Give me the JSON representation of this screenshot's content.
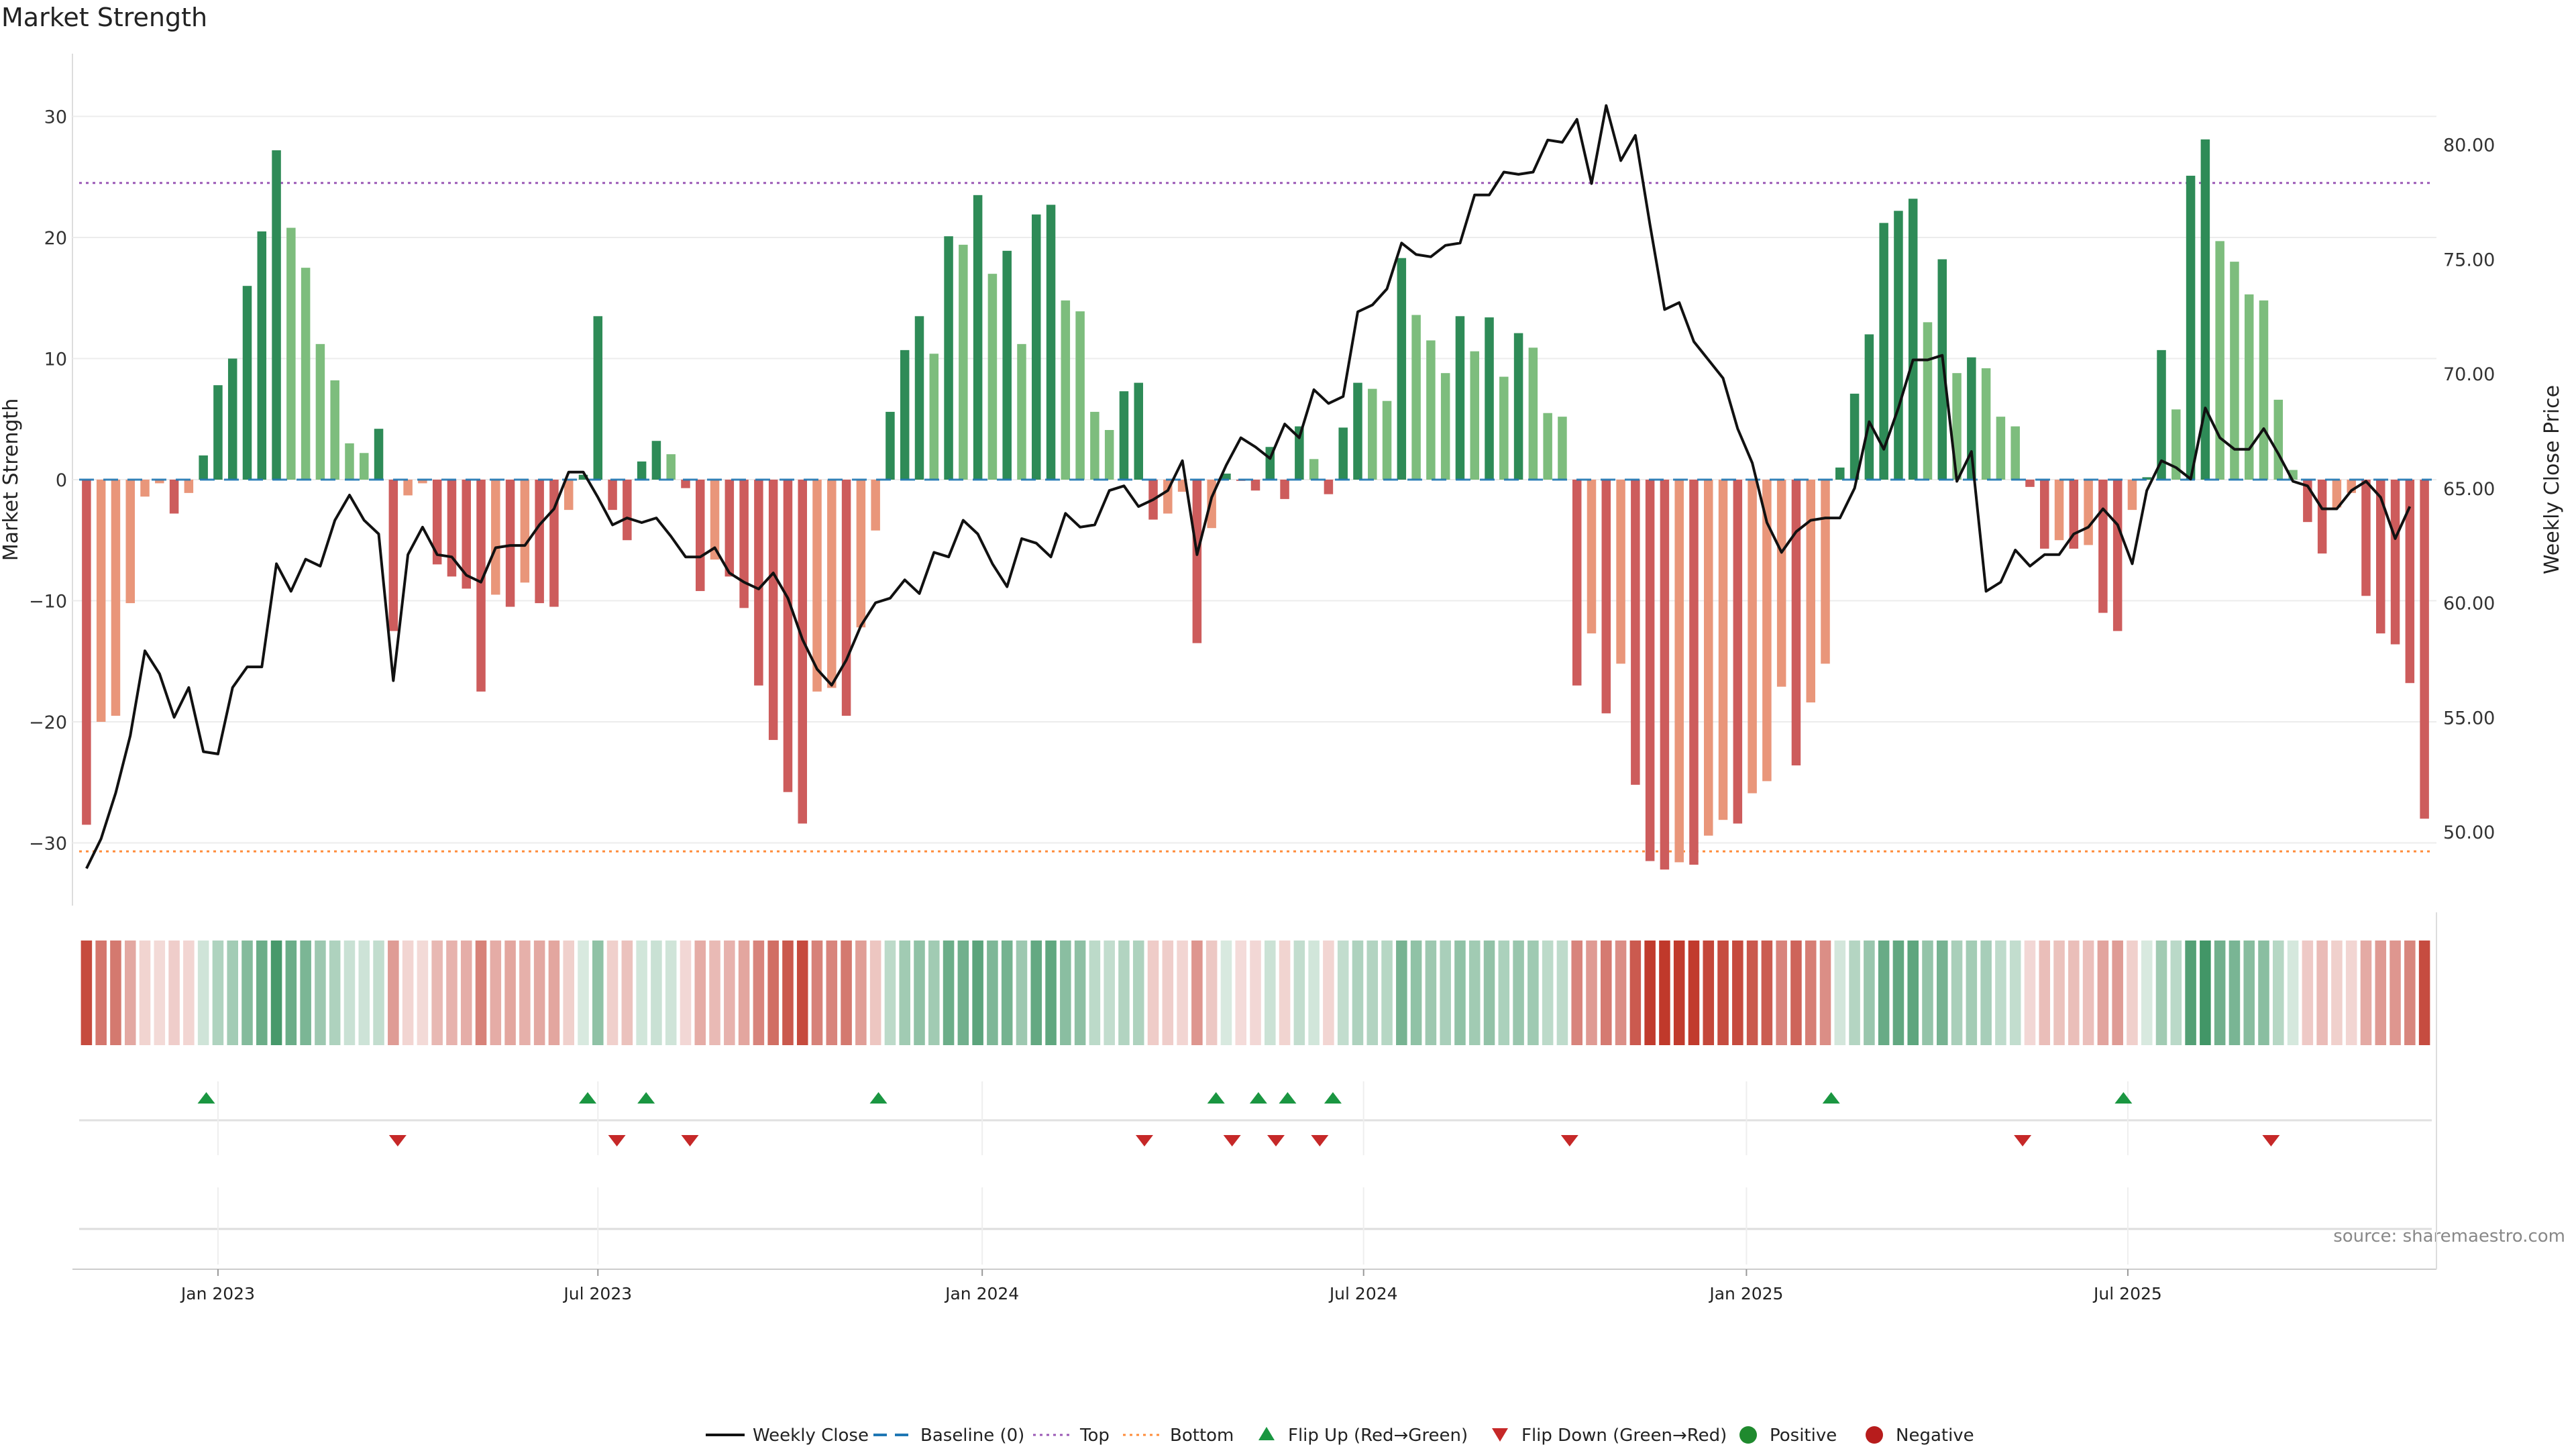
{
  "title": "Market Strength",
  "source": "source: sharemaestro.com",
  "colors": {
    "strong_green": "#2e8b57",
    "light_green": "#7dbd7d",
    "strong_red": "#cd5c5c",
    "light_red": "#e9967a",
    "price_line": "#111111",
    "baseline": "#1f77b4",
    "top_line": "#9b59b6",
    "bottom_line": "#ff8c3a",
    "flip_up": "#1a9641",
    "flip_down": "#c62828",
    "positive": "#1f8a2e",
    "negative": "#b71c1c"
  },
  "legend": [
    {
      "label": "Weekly Close",
      "kind": "line"
    },
    {
      "label": "Baseline (0)",
      "kind": "dash"
    },
    {
      "label": "Top",
      "kind": "dot-top"
    },
    {
      "label": "Bottom",
      "kind": "dot-bottom"
    },
    {
      "label": "Flip Up (Red→Green)",
      "kind": "tri-up"
    },
    {
      "label": "Flip Down (Green→Red)",
      "kind": "tri-down"
    },
    {
      "label": "Positive",
      "kind": "dot-pos"
    },
    {
      "label": "Negative",
      "kind": "dot-neg"
    }
  ],
  "chart_data": {
    "type": "bar",
    "title": "Market Strength",
    "ylabel": "Market Strength",
    "y2label": "Weekly Close Price",
    "ylim": [
      -35,
      35
    ],
    "y2lim": [
      47.5,
      83.0
    ],
    "y_ticks": [
      -30,
      -20,
      -10,
      0,
      10,
      20,
      30
    ],
    "y_tick_labels": [
      "−30",
      "−20",
      "−10",
      "0",
      "10",
      "20",
      "30"
    ],
    "y2_ticks": [
      50,
      55,
      60,
      65,
      70,
      75,
      80
    ],
    "y2_tick_labels": [
      "50.00",
      "55.00",
      "60.00",
      "65.00",
      "70.00",
      "75.00",
      "80.00"
    ],
    "x_range": [
      0,
      157
    ],
    "x_ticks": [
      {
        "label": "Jan 2023",
        "pos": 9
      },
      {
        "label": "Jul 2023",
        "pos": 35
      },
      {
        "label": "Jan 2024",
        "pos": 61.3
      },
      {
        "label": "Jul 2024",
        "pos": 87.4
      },
      {
        "label": "Jan 2025",
        "pos": 113.6
      },
      {
        "label": "Jul 2025",
        "pos": 139.7
      }
    ],
    "top_level": 24.5,
    "bottom_level": -30.7,
    "baseline": 0,
    "series": [
      {
        "name": "Market Strength",
        "values": [
          -28.5,
          -20,
          -19.5,
          -10.2,
          -1.4,
          -0.3,
          -2.8,
          -1.1,
          2,
          7.8,
          10,
          16,
          20.5,
          27.2,
          20.8,
          17.5,
          11.2,
          8.2,
          3,
          2.2,
          4.2,
          -12.5,
          -1.3,
          -0.3,
          -7,
          -8,
          -9,
          -17.5,
          -9.5,
          -10.5,
          -8.5,
          -10.2,
          -10.5,
          -2.5,
          0.4,
          13.5,
          -2.5,
          -5,
          1.5,
          3.2,
          2.1,
          -0.7,
          -9.2,
          -6.6,
          -8,
          -10.6,
          -17,
          -21.5,
          -25.8,
          -28.4,
          -17.5,
          -17.2,
          -19.5,
          -12.2,
          -4.2,
          5.6,
          10.7,
          13.5,
          10.4,
          20.1,
          19.4,
          23.5,
          17,
          18.9,
          11.2,
          21.9,
          22.7,
          14.8,
          13.9,
          5.6,
          4.1,
          7.3,
          8,
          -3.3,
          -2.8,
          -1,
          -13.5,
          -4,
          0.5,
          -0.1,
          -0.9,
          2.7,
          -1.6,
          4.4,
          1.7,
          -1.2,
          4.3,
          8,
          7.5,
          6.5,
          18.3,
          13.6,
          11.5,
          8.8,
          13.5,
          10.6,
          13.4,
          8.5,
          12.1,
          10.9,
          5.5,
          5.2,
          -17,
          -12.7,
          -19.3,
          -15.2,
          -25.2,
          -31.5,
          -32.2,
          -31.6,
          -31.8,
          -29.4,
          -28.1,
          -28.4,
          -25.9,
          -24.9,
          -17.1,
          -23.6,
          -18.4,
          -15.2,
          1,
          7.1,
          12,
          21.2,
          22.2,
          23.2,
          13,
          18.2,
          8.8,
          10.1,
          9.2,
          5.2,
          4.4,
          -0.6,
          -5.7,
          -5,
          -5.7,
          -5.4,
          -11,
          -12.5,
          -2.5,
          0.2,
          10.7,
          5.8,
          25.1,
          28.1,
          19.7,
          18,
          15.3,
          14.8,
          6.6,
          0.8,
          -3.5,
          -6.1,
          -2.3,
          -1.1,
          -9.6,
          -12.7,
          -13.6,
          -16.8,
          -28
        ]
      },
      {
        "name": "Weekly Close",
        "values": [
          48.4,
          49.7,
          51.7,
          54.2,
          57.9,
          56.9,
          55,
          56.3,
          53.5,
          53.4,
          56.3,
          57.2,
          57.2,
          61.7,
          60.5,
          61.9,
          61.6,
          63.6,
          64.7,
          63.6,
          63,
          56.6,
          62.1,
          63.3,
          62.1,
          62,
          61.2,
          60.9,
          62.4,
          62.5,
          62.5,
          63.4,
          64.1,
          65.7,
          65.7,
          64.6,
          63.4,
          63.7,
          63.5,
          63.7,
          62.9,
          62,
          62,
          62.4,
          61.3,
          60.9,
          60.6,
          61.3,
          60.2,
          58.4,
          57.1,
          56.4,
          57.5,
          59,
          60,
          60.2,
          61,
          60.4,
          62.2,
          62,
          63.6,
          63,
          61.7,
          60.7,
          62.8,
          62.6,
          62,
          63.9,
          63.3,
          63.4,
          64.9,
          65.1,
          64.2,
          64.5,
          64.9,
          66.2,
          62.1,
          64.6,
          66,
          67.2,
          66.8,
          66.3,
          67.8,
          67.2,
          69.3,
          68.7,
          69,
          72.7,
          73,
          73.7,
          75.7,
          75.2,
          75.1,
          75.6,
          75.7,
          77.8,
          77.8,
          78.8,
          78.7,
          78.8,
          80.2,
          80.1,
          81.1,
          78.3,
          81.7,
          79.3,
          80.4,
          76.5,
          72.8,
          73.1,
          71.4,
          70.6,
          69.8,
          67.6,
          66.1,
          63.5,
          62.2,
          63.1,
          63.6,
          63.7,
          63.7,
          65,
          67.9,
          66.7,
          68.5,
          70.6,
          70.6,
          70.8,
          65.3,
          66.6,
          60.5,
          60.9,
          62.3,
          61.6,
          62.1,
          62.1,
          63,
          63.3,
          64.1,
          63.4,
          61.7,
          64.9,
          66.2,
          65.9,
          65.4,
          68.5,
          67.2,
          66.7,
          66.7,
          67.6,
          66.5,
          65.3,
          65.1,
          64.1,
          64.1,
          64.9,
          65.3,
          64.6,
          62.8,
          64.2
        ]
      }
    ],
    "flip_up_weeks": [
      8.2,
      34.3,
      38.3,
      54.2,
      77.3,
      80.2,
      82.2,
      85.3,
      119.4,
      139.4
    ],
    "flip_down_weeks": [
      21.3,
      36.3,
      41.3,
      72.4,
      78.4,
      81.4,
      84.4,
      101.5,
      132.5,
      149.5
    ]
  }
}
